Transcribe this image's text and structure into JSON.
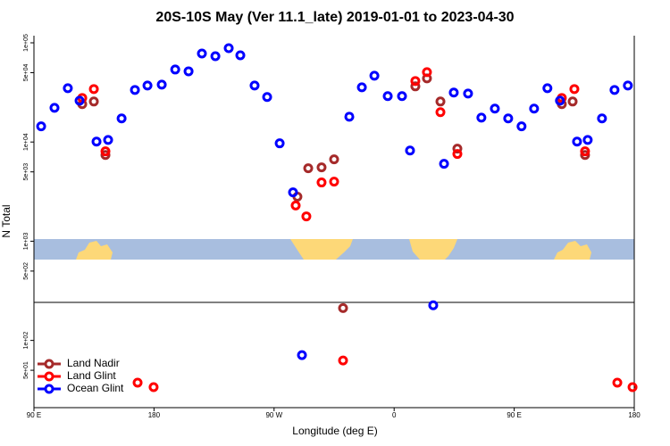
{
  "chart_data": {
    "type": "scatter",
    "title": "20S-10S May (Ver 11.1_late)   2019-01-01 to 2023-04-30",
    "x_label": "Longitude (deg E)",
    "y_label": "N Total",
    "log_y": true,
    "legend": "lower left",
    "xlim": [
      90,
      540
    ],
    "xticks": [
      {
        "value": 90,
        "label": "90 E"
      },
      {
        "value": 180,
        "label": "180"
      },
      {
        "value": 270,
        "label": "90 W"
      },
      {
        "value": 360,
        "label": "0"
      },
      {
        "value": 450,
        "label": "90 E"
      },
      {
        "value": 540,
        "label": "180"
      }
    ],
    "ylim": [
      21,
      118000
    ],
    "yticks": [
      {
        "value": 100000,
        "label": "1e+05"
      },
      {
        "value": 50000,
        "label": "5e+04"
      },
      {
        "value": 10000,
        "label": "1e+04"
      },
      {
        "value": 5000,
        "label": "5e+03"
      },
      {
        "value": 1000,
        "label": "1e+03"
      },
      {
        "value": 500,
        "label": "5e+02"
      },
      {
        "value": 100,
        "label": "1e+02"
      },
      {
        "value": 50,
        "label": "5e+01"
      }
    ],
    "series": [
      {
        "name": "Land Nadir",
        "color": "#a52a2a",
        "x": [
          126.2,
          134.9,
          143.6,
          287.5,
          295.6,
          305.6,
          315,
          321.7,
          375.9,
          384.6,
          394.7,
          407.4,
          485.7,
          493.8,
          503.1
        ],
        "values": [
          24100,
          25600,
          7400,
          2810,
          5440,
          5550,
          6690,
          212,
          36400,
          43800,
          25600,
          8570,
          24100,
          25600,
          7400
        ]
      },
      {
        "name": "Land Glint",
        "color": "#ff0000",
        "x": [
          126.2,
          134.9,
          143.6,
          167.7,
          179.7,
          286.2,
          294.2,
          305.6,
          315,
          321.7,
          375.9,
          384.6,
          394.7,
          407.4,
          485.7,
          495.1,
          503.1,
          527.3,
          538.7
        ],
        "values": [
          27800,
          34200,
          8050,
          37.5,
          33.8,
          2290,
          1780,
          3910,
          3990,
          62.8,
          41200,
          50600,
          20000,
          7570,
          27800,
          34200,
          8050,
          37.5,
          33.8
        ]
      },
      {
        "name": "Ocean Glint",
        "color": "#0000ff",
        "x": [
          95.4,
          105.4,
          115.4,
          124.2,
          136.9,
          145.6,
          155.7,
          165.7,
          175.1,
          185.8,
          195.9,
          205.9,
          215.9,
          226,
          236,
          244.7,
          255.4,
          264.8,
          274.2,
          284.2,
          290.9,
          326.4,
          335.8,
          345.2,
          355.2,
          365.9,
          371.9,
          389.3,
          397.4,
          404.7,
          415.4,
          425.4,
          435.5,
          445.5,
          455.5,
          464.9,
          474.9,
          484.3,
          497.1,
          505.1,
          515.8,
          525.2,
          535.2
        ],
        "values": [
          14400,
          22100,
          34900,
          26100,
          10100,
          10500,
          17300,
          33500,
          37100,
          37900,
          53800,
          51600,
          78000,
          73300,
          88300,
          74900,
          37100,
          28400,
          9700,
          3110,
          71,
          18000,
          35600,
          46600,
          29000,
          29000,
          8200,
          226,
          6030,
          31500,
          30800,
          17600,
          21700,
          17300,
          14400,
          21700,
          34900,
          26100,
          10100,
          10500,
          17300,
          33500,
          37100
        ]
      }
    ]
  }
}
